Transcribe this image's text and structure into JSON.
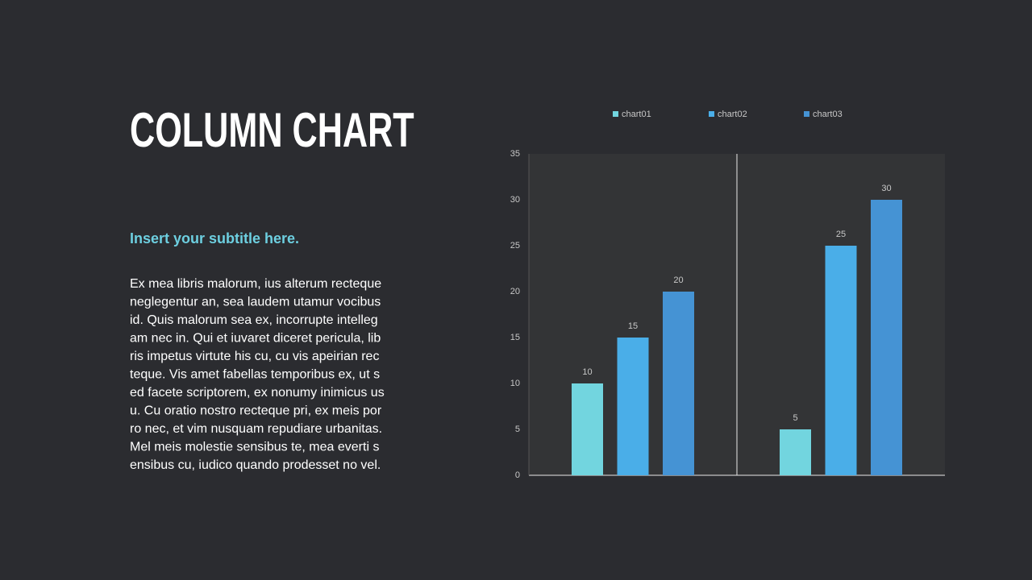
{
  "slide": {
    "title": "COLUMN CHART",
    "subtitle": "Insert your subtitle here.",
    "body": [
      "Ex mea libris malorum, ius alterum recteque",
      "neglegentur an, sea laudem utamur vocibus",
      "id. Quis malorum sea ex, incorrupte intelleg",
      "am nec in. Qui et iuvaret diceret pericula, lib",
      "ris impetus virtute his cu, cu vis apeirian rec",
      "teque. Vis amet fabellas temporibus ex, ut s",
      "ed facete scriptorem, ex nonumy inimicus us",
      "u. Cu oratio nostro recteque pri, ex meis por",
      "ro nec, et vim nusquam repudiare urbanitas.",
      "Mel meis molestie sensibus te, mea everti s",
      "ensibus cu, iudico quando prodesset no vel."
    ]
  },
  "chart_data": {
    "type": "bar",
    "categories": [
      null,
      null
    ],
    "series": [
      {
        "name": "chart01",
        "color": "#72d5df",
        "values": [
          10,
          5
        ]
      },
      {
        "name": "chart02",
        "color": "#4aaee8",
        "values": [
          15,
          25
        ]
      },
      {
        "name": "chart03",
        "color": "#4593d4",
        "values": [
          20,
          30
        ]
      }
    ],
    "ylim": [
      0,
      35
    ],
    "yticks": [
      0,
      5,
      10,
      15,
      20,
      25,
      30,
      35
    ],
    "legend": "top",
    "data_labels": true
  }
}
